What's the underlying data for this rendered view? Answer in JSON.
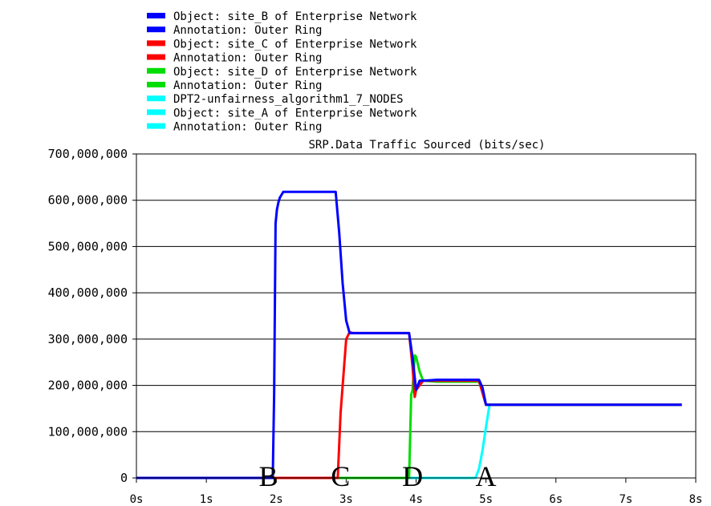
{
  "chart_data": {
    "type": "line",
    "title": "SRP.Data Traffic Sourced (bits/sec)",
    "xlabel": "",
    "ylabel": "",
    "xlim": [
      0,
      8
    ],
    "ylim": [
      0,
      700000000
    ],
    "x_ticks": [
      "0s",
      "1s",
      "2s",
      "3s",
      "4s",
      "5s",
      "6s",
      "7s",
      "8s"
    ],
    "y_ticks": [
      "0",
      "100,000,000",
      "200,000,000",
      "300,000,000",
      "400,000,000",
      "500,000,000",
      "600,000,000",
      "700,000,000"
    ],
    "grid": "horizontal",
    "legend_position": "top",
    "legend": [
      {
        "text": "Object: site_B of Enterprise Network",
        "color": "#0000ff"
      },
      {
        "text": "Annotation: Outer Ring",
        "color": "#0000ff"
      },
      {
        "text": "Object: site_C of Enterprise Network",
        "color": "#ff0000"
      },
      {
        "text": "Annotation: Outer Ring",
        "color": "#ff0000"
      },
      {
        "text": "Object: site_D of Enterprise Network",
        "color": "#00dd00"
      },
      {
        "text": "Annotation: Outer Ring",
        "color": "#00dd00"
      },
      {
        "text": "DPT2-unfairness_algorithm1_7_NODES",
        "color": "#00ffff"
      },
      {
        "text": "Object: site_A of Enterprise Network",
        "color": "#00ffff"
      },
      {
        "text": "Annotation: Outer Ring",
        "color": "#00ffff"
      }
    ],
    "annotations": [
      {
        "text": "B",
        "x": 1.75
      },
      {
        "text": "C",
        "x": 2.78
      },
      {
        "text": "D",
        "x": 3.8
      },
      {
        "text": "A",
        "x": 4.85
      }
    ],
    "series": [
      {
        "color": "#00ffff",
        "x": [
          0,
          4.85,
          4.9,
          4.95,
          5.0,
          5.05,
          7.8
        ],
        "y": [
          0,
          0,
          20000000,
          60000000,
          110000000,
          158000000,
          158000000
        ]
      },
      {
        "color": "#00dd00",
        "x": [
          0,
          3.9,
          3.93,
          3.95,
          3.98,
          4.0,
          4.05,
          4.1,
          4.3,
          4.9,
          4.95,
          5.0,
          7.8
        ],
        "y": [
          0,
          0,
          180000000,
          190000000,
          265000000,
          262000000,
          230000000,
          210000000,
          208000000,
          208000000,
          185000000,
          158000000,
          158000000
        ]
      },
      {
        "color": "#ff0000",
        "x": [
          0,
          2.88,
          2.92,
          2.96,
          3.0,
          3.05,
          3.1,
          3.3,
          3.9,
          3.95,
          3.98,
          4.0,
          4.1,
          4.3,
          4.9,
          5.0,
          7.8
        ],
        "y": [
          0,
          0,
          140000000,
          220000000,
          300000000,
          315000000,
          313000000,
          313000000,
          313000000,
          240000000,
          175000000,
          190000000,
          210000000,
          210000000,
          210000000,
          158000000,
          158000000
        ]
      },
      {
        "color": "#0000ff",
        "x": [
          0,
          1.95,
          1.97,
          1.99,
          2.01,
          2.03,
          2.05,
          2.1,
          2.15,
          2.85,
          2.9,
          2.95,
          3.0,
          3.05,
          3.1,
          3.5,
          3.9,
          3.95,
          4.0,
          4.05,
          4.1,
          4.3,
          4.6,
          4.9,
          4.95,
          5.0,
          5.1,
          7.8
        ],
        "y": [
          0,
          0,
          180000000,
          550000000,
          580000000,
          595000000,
          605000000,
          618000000,
          618000000,
          618000000,
          530000000,
          420000000,
          340000000,
          313000000,
          313000000,
          313000000,
          313000000,
          260000000,
          190000000,
          210000000,
          210000000,
          212000000,
          212000000,
          212000000,
          195000000,
          158000000,
          158000000,
          158000000
        ]
      }
    ]
  }
}
